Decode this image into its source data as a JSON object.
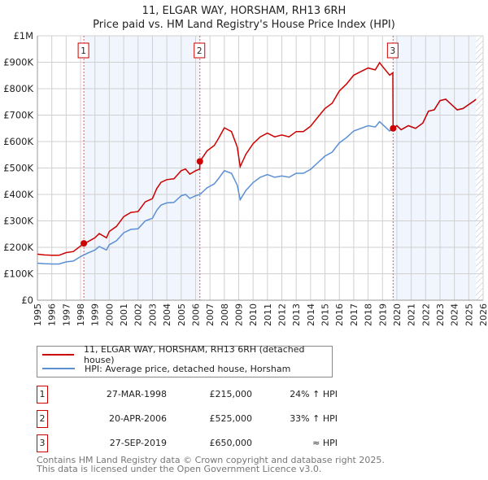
{
  "chart_data": {
    "type": "line",
    "title": "11, ELGAR WAY, HORSHAM, RH13 6RH",
    "subtitle": "Price paid vs. HM Land Registry's House Price Index (HPI)",
    "xlabel": "",
    "ylabel": "",
    "xlim": [
      1995,
      2026
    ],
    "ylim": [
      0,
      1000000
    ],
    "grid": true,
    "y_ticks": [
      {
        "v": 0,
        "label": "£0"
      },
      {
        "v": 100000,
        "label": "£100K"
      },
      {
        "v": 200000,
        "label": "£200K"
      },
      {
        "v": 300000,
        "label": "£300K"
      },
      {
        "v": 400000,
        "label": "£400K"
      },
      {
        "v": 500000,
        "label": "£500K"
      },
      {
        "v": 600000,
        "label": "£600K"
      },
      {
        "v": 700000,
        "label": "£700K"
      },
      {
        "v": 800000,
        "label": "£800K"
      },
      {
        "v": 900000,
        "label": "£900K"
      },
      {
        "v": 1000000,
        "label": "£1M"
      }
    ],
    "x_ticks": [
      "1995",
      "1996",
      "1997",
      "1998",
      "1999",
      "2000",
      "2001",
      "2002",
      "2003",
      "2004",
      "2005",
      "2006",
      "2007",
      "2008",
      "2009",
      "2010",
      "2011",
      "2012",
      "2013",
      "2014",
      "2015",
      "2016",
      "2017",
      "2018",
      "2019",
      "2020",
      "2021",
      "2022",
      "2023",
      "2024",
      "2025",
      "2026"
    ],
    "shaded_ranges": [
      [
        1998.23,
        2006.3
      ],
      [
        2019.74,
        2025.5
      ]
    ],
    "data_end": 2025.5,
    "series": [
      {
        "name": "11, ELGAR WAY, HORSHAM, RH13 6RH (detached house)",
        "color": "#cc0000",
        "x": [
          1995,
          1995.5,
          1996,
          1996.5,
          1997,
          1997.5,
          1998,
          1998.5,
          1999,
          1999.3,
          1999.8,
          2000,
          2000.5,
          2001,
          2001.5,
          2002,
          2002.5,
          2003,
          2003.3,
          2003.6,
          2004,
          2004.5,
          2005,
          2005.3,
          2005.6,
          2006,
          2006.29,
          2006.3,
          2006.8,
          2007.3,
          2007.6,
          2008,
          2008.5,
          2008.9,
          2009.1,
          2009.5,
          2010,
          2010.5,
          2011,
          2011.5,
          2012,
          2012.5,
          2013,
          2013.5,
          2014,
          2014.5,
          2015,
          2015.5,
          2016,
          2016.5,
          2017,
          2017.5,
          2018,
          2018.5,
          2018.8,
          2019,
          2019.5,
          2019.72,
          2019.74,
          2020,
          2020.3,
          2020.8,
          2021.3,
          2021.8,
          2022.2,
          2022.6,
          2023,
          2023.4,
          2023.8,
          2024.2,
          2024.6,
          2025,
          2025.4,
          2025.5
        ],
        "y": [
          174,
          171,
          170,
          170,
          180,
          184,
          205,
          221,
          236,
          252,
          236,
          260,
          279,
          316,
          332,
          335,
          372,
          384,
          422,
          446,
          456,
          459,
          490,
          496,
          477,
          490,
          496,
          525,
          565,
          585,
          612,
          652,
          638,
          579,
          505,
          552,
          592,
          618,
          632,
          618,
          625,
          618,
          638,
          638,
          658,
          692,
          725,
          745,
          791,
          818,
          851,
          865,
          878,
          871,
          898,
          884,
          851,
          860,
          650,
          660,
          645,
          660,
          650,
          670,
          715,
          720,
          755,
          760,
          740,
          720,
          725,
          740,
          755,
          760
        ]
      },
      {
        "name": "HPI: Average price, detached house, Horsham",
        "color": "#5b8fd4",
        "x": [
          1995,
          1995.5,
          1996,
          1996.5,
          1997,
          1997.5,
          1998,
          1998.5,
          1999,
          1999.3,
          1999.8,
          2000,
          2000.5,
          2001,
          2001.5,
          2002,
          2002.5,
          2003,
          2003.3,
          2003.6,
          2004,
          2004.5,
          2005,
          2005.3,
          2005.6,
          2006,
          2006.3,
          2006.8,
          2007.3,
          2007.6,
          2008,
          2008.5,
          2008.9,
          2009.1,
          2009.5,
          2010,
          2010.5,
          2011,
          2011.5,
          2012,
          2012.5,
          2013,
          2013.5,
          2014,
          2014.5,
          2015,
          2015.5,
          2016,
          2016.5,
          2017,
          2017.5,
          2018,
          2018.5,
          2018.8,
          2019,
          2019.5,
          2019.74,
          2020,
          2020.3,
          2020.8,
          2021.3,
          2021.8,
          2022.2,
          2022.6,
          2023,
          2023.4,
          2023.8,
          2024.2,
          2024.6,
          2025,
          2025.4,
          2025.5
        ],
        "y": [
          140,
          138,
          137,
          137,
          145,
          148,
          165,
          178,
          190,
          203,
          190,
          210,
          225,
          255,
          268,
          270,
          300,
          310,
          340,
          360,
          368,
          370,
          395,
          400,
          385,
          395,
          400,
          425,
          440,
          460,
          490,
          480,
          435,
          380,
          415,
          445,
          465,
          475,
          465,
          470,
          465,
          480,
          480,
          495,
          520,
          545,
          560,
          595,
          615,
          640,
          650,
          660,
          655,
          675,
          665,
          640,
          650,
          660,
          645,
          660,
          650,
          670,
          715,
          720,
          755,
          760,
          740,
          720,
          725,
          740,
          755,
          760
        ]
      }
    ],
    "y_units": "thousands GBP",
    "sales": [
      {
        "num": "1",
        "x": 1998.23,
        "price": 215
      },
      {
        "num": "2",
        "x": 2006.3,
        "price": 525
      },
      {
        "num": "3",
        "x": 2019.74,
        "price": 650
      }
    ]
  },
  "legend": {
    "items": [
      {
        "label": "11, ELGAR WAY, HORSHAM, RH13 6RH (detached house)"
      },
      {
        "label": "HPI: Average price, detached house, Horsham"
      }
    ]
  },
  "table": [
    {
      "num": "1",
      "date": "27-MAR-1998",
      "price": "£215,000",
      "hpi": "24% ↑ HPI"
    },
    {
      "num": "2",
      "date": "20-APR-2006",
      "price": "£525,000",
      "hpi": "33% ↑ HPI"
    },
    {
      "num": "3",
      "date": "27-SEP-2019",
      "price": "£650,000",
      "hpi": "≈ HPI"
    }
  ],
  "footer": {
    "line1": "Contains HM Land Registry data © Crown copyright and database right 2025.",
    "line2": "This data is licensed under the Open Government Licence v3.0."
  }
}
